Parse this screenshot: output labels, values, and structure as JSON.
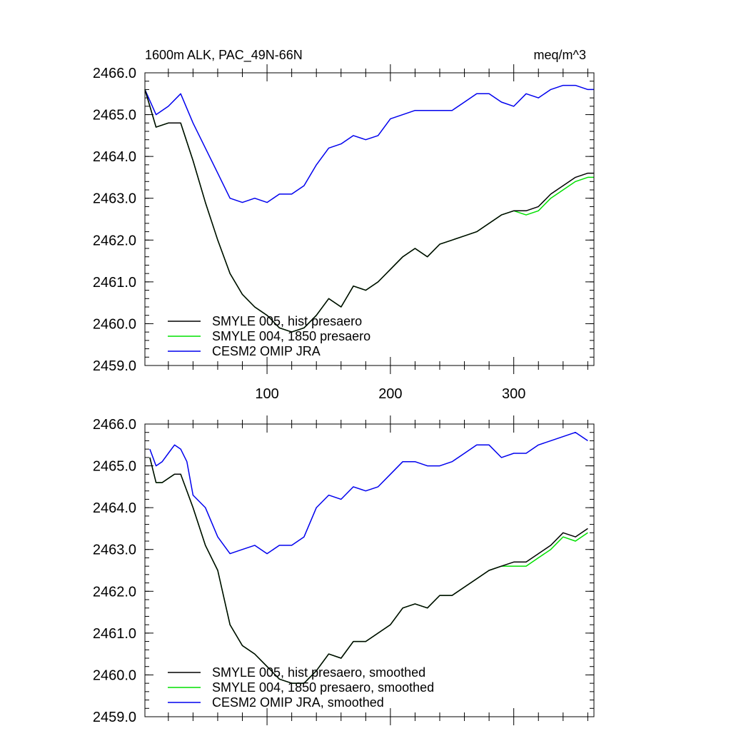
{
  "colors": {
    "hist": "#000000",
    "pre1850": "#00e000",
    "omip": "#0000ee"
  },
  "chart_data": [
    {
      "type": "line",
      "title_left": "1600m ALK, PAC_49N-66N",
      "title_right": "meq/m^3",
      "xlim": [
        1,
        365
      ],
      "ylim": [
        2459.0,
        2466.0
      ],
      "xticks": [
        100,
        200,
        300
      ],
      "xtick_labels": [
        "100",
        "200",
        "300"
      ],
      "yticks": [
        2459.0,
        2460.0,
        2461.0,
        2462.0,
        2463.0,
        2464.0,
        2465.0,
        2466.0
      ],
      "ytick_labels": [
        "2459.0",
        "2460.0",
        "2461.0",
        "2462.0",
        "2463.0",
        "2464.0",
        "2465.0",
        "2466.0"
      ],
      "legend_position": "bottom-left",
      "series": [
        {
          "name": "SMYLE 005, hist presaero",
          "color_key": "hist",
          "x": [
            1,
            10,
            20,
            30,
            40,
            50,
            60,
            70,
            80,
            90,
            100,
            110,
            120,
            130,
            140,
            150,
            160,
            170,
            180,
            190,
            200,
            210,
            220,
            230,
            240,
            250,
            260,
            270,
            280,
            290,
            300,
            310,
            320,
            330,
            340,
            350,
            360,
            365
          ],
          "y": [
            2465.6,
            2464.7,
            2464.8,
            2464.8,
            2463.9,
            2462.9,
            2462.0,
            2461.2,
            2460.7,
            2460.4,
            2460.2,
            2459.9,
            2459.8,
            2459.9,
            2460.2,
            2460.6,
            2460.4,
            2460.9,
            2460.8,
            2461.0,
            2461.3,
            2461.6,
            2461.8,
            2461.6,
            2461.9,
            2462.0,
            2462.1,
            2462.2,
            2462.4,
            2462.6,
            2462.7,
            2462.7,
            2462.8,
            2463.1,
            2463.3,
            2463.5,
            2463.6,
            2463.6
          ]
        },
        {
          "name": "SMYLE 004, 1850 presaero",
          "color_key": "pre1850",
          "x": [
            1,
            10,
            20,
            30,
            40,
            50,
            60,
            70,
            80,
            90,
            100,
            110,
            120,
            130,
            140,
            150,
            160,
            170,
            180,
            190,
            200,
            210,
            220,
            230,
            240,
            250,
            260,
            270,
            280,
            290,
            300,
            310,
            320,
            330,
            340,
            350,
            360,
            365
          ],
          "y": [
            2465.6,
            2464.7,
            2464.8,
            2464.8,
            2463.9,
            2462.9,
            2462.0,
            2461.2,
            2460.7,
            2460.4,
            2460.2,
            2459.9,
            2459.8,
            2459.9,
            2460.2,
            2460.6,
            2460.4,
            2460.9,
            2460.8,
            2461.0,
            2461.3,
            2461.6,
            2461.8,
            2461.6,
            2461.9,
            2462.0,
            2462.1,
            2462.2,
            2462.4,
            2462.6,
            2462.7,
            2462.6,
            2462.7,
            2463.0,
            2463.2,
            2463.4,
            2463.5,
            2463.5
          ]
        },
        {
          "name": "CESM2 OMIP JRA",
          "color_key": "omip",
          "x": [
            1,
            10,
            20,
            30,
            40,
            50,
            60,
            70,
            80,
            90,
            100,
            110,
            120,
            130,
            140,
            150,
            160,
            170,
            180,
            190,
            200,
            210,
            220,
            230,
            240,
            250,
            260,
            270,
            280,
            290,
            300,
            310,
            320,
            330,
            340,
            350,
            360,
            365
          ],
          "y": [
            2465.6,
            2465.0,
            2465.2,
            2465.5,
            2464.8,
            2464.2,
            2463.6,
            2463.0,
            2462.9,
            2463.0,
            2462.9,
            2463.1,
            2463.1,
            2463.3,
            2463.8,
            2464.2,
            2464.3,
            2464.5,
            2464.4,
            2464.5,
            2464.9,
            2465.0,
            2465.1,
            2465.1,
            2465.1,
            2465.1,
            2465.3,
            2465.5,
            2465.5,
            2465.3,
            2465.2,
            2465.5,
            2465.4,
            2465.6,
            2465.7,
            2465.7,
            2465.6,
            2465.6
          ]
        }
      ]
    },
    {
      "type": "line",
      "xlim": [
        1,
        365
      ],
      "ylim": [
        2459.0,
        2466.0
      ],
      "xticks": [
        100,
        200,
        300
      ],
      "yticks": [
        2459.0,
        2460.0,
        2461.0,
        2462.0,
        2463.0,
        2464.0,
        2465.0,
        2466.0
      ],
      "ytick_labels": [
        "2459.0",
        "2460.0",
        "2461.0",
        "2462.0",
        "2463.0",
        "2464.0",
        "2465.0",
        "2466.0"
      ],
      "legend_position": "bottom-left",
      "series": [
        {
          "name": "SMYLE 005, hist presaero, smoothed",
          "color_key": "hist",
          "x": [
            5,
            10,
            15,
            20,
            25,
            30,
            35,
            40,
            50,
            60,
            70,
            80,
            90,
            100,
            110,
            120,
            130,
            140,
            150,
            160,
            170,
            180,
            190,
            200,
            210,
            220,
            230,
            240,
            250,
            260,
            270,
            280,
            290,
            300,
            310,
            320,
            330,
            340,
            350,
            360
          ],
          "y": [
            2465.2,
            2464.6,
            2464.6,
            2464.7,
            2464.8,
            2464.8,
            2464.4,
            2464.0,
            2463.1,
            2462.5,
            2461.2,
            2460.7,
            2460.5,
            2460.2,
            2459.9,
            2459.8,
            2459.8,
            2460.1,
            2460.5,
            2460.4,
            2460.8,
            2460.8,
            2461.0,
            2461.2,
            2461.6,
            2461.7,
            2461.6,
            2461.9,
            2461.9,
            2462.1,
            2462.3,
            2462.5,
            2462.6,
            2462.7,
            2462.7,
            2462.9,
            2463.1,
            2463.4,
            2463.3,
            2463.5
          ]
        },
        {
          "name": "SMYLE 004, 1850 presaero, smoothed",
          "color_key": "pre1850",
          "x": [
            5,
            10,
            15,
            20,
            25,
            30,
            35,
            40,
            50,
            60,
            70,
            80,
            90,
            100,
            110,
            120,
            130,
            140,
            150,
            160,
            170,
            180,
            190,
            200,
            210,
            220,
            230,
            240,
            250,
            260,
            270,
            280,
            290,
            300,
            310,
            320,
            330,
            340,
            350,
            360
          ],
          "y": [
            2465.2,
            2464.6,
            2464.6,
            2464.7,
            2464.8,
            2464.8,
            2464.4,
            2464.0,
            2463.1,
            2462.5,
            2461.2,
            2460.7,
            2460.5,
            2460.2,
            2459.9,
            2459.8,
            2459.8,
            2460.1,
            2460.5,
            2460.4,
            2460.8,
            2460.8,
            2461.0,
            2461.2,
            2461.6,
            2461.7,
            2461.6,
            2461.9,
            2461.9,
            2462.1,
            2462.3,
            2462.5,
            2462.6,
            2462.6,
            2462.6,
            2462.8,
            2463.0,
            2463.3,
            2463.2,
            2463.4
          ]
        },
        {
          "name": "CESM2 OMIP JRA, smoothed",
          "color_key": "omip",
          "x": [
            5,
            10,
            15,
            20,
            25,
            30,
            35,
            40,
            50,
            60,
            70,
            80,
            90,
            100,
            110,
            120,
            130,
            140,
            150,
            160,
            170,
            180,
            190,
            200,
            210,
            220,
            230,
            240,
            250,
            260,
            270,
            280,
            290,
            300,
            310,
            320,
            330,
            340,
            350,
            360
          ],
          "y": [
            2465.4,
            2465.0,
            2465.1,
            2465.3,
            2465.5,
            2465.4,
            2465.1,
            2464.3,
            2464.0,
            2463.3,
            2462.9,
            2463.0,
            2463.1,
            2462.9,
            2463.1,
            2463.1,
            2463.3,
            2464.0,
            2464.3,
            2464.2,
            2464.5,
            2464.4,
            2464.5,
            2464.8,
            2465.1,
            2465.1,
            2465.0,
            2465.0,
            2465.1,
            2465.3,
            2465.5,
            2465.5,
            2465.2,
            2465.3,
            2465.3,
            2465.5,
            2465.6,
            2465.7,
            2465.8,
            2465.6
          ]
        }
      ]
    }
  ]
}
